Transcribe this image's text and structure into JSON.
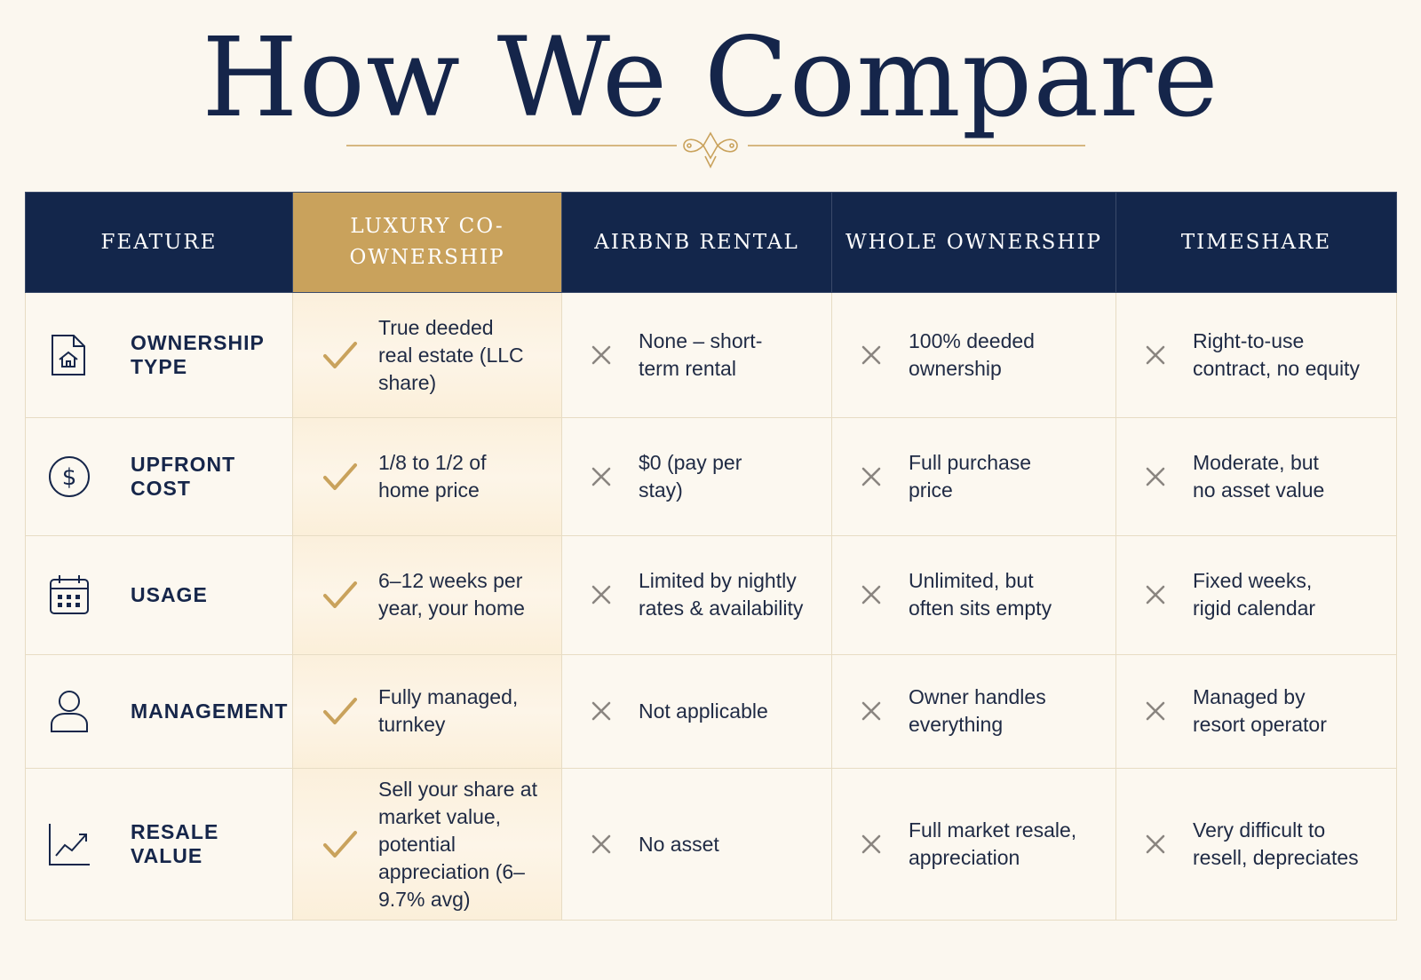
{
  "title": "How We Compare",
  "colors": {
    "navy": "#13264b",
    "gold": "#c9a25c",
    "background": "#fbf7ef",
    "x_mark": "#8a8580"
  },
  "columns": [
    {
      "label": "FEATURE",
      "highlight": false
    },
    {
      "label": "LUXURY CO-OWNERSHIP",
      "highlight": true
    },
    {
      "label": "AIRBNB RENTAL",
      "highlight": false
    },
    {
      "label": "WHOLE OWNERSHIP",
      "highlight": false
    },
    {
      "label": "TIMESHARE",
      "highlight": false
    }
  ],
  "rows": [
    {
      "feature": "OWNERSHIP TYPE",
      "icon": "house-document-icon",
      "luxury": {
        "mark": "check",
        "text": "True deeded real estate (LLC share)"
      },
      "airbnb": {
        "mark": "x",
        "text": "None – short-term rental"
      },
      "whole": {
        "mark": "x",
        "text": "100% deeded ownership"
      },
      "timeshare": {
        "mark": "x",
        "text": "Right-to-use contract, no equity"
      }
    },
    {
      "feature": "UPFRONT COST",
      "icon": "dollar-circle-icon",
      "luxury": {
        "mark": "check",
        "text": "1/8 to 1/2 of home price"
      },
      "airbnb": {
        "mark": "x",
        "text": "$0 (pay per stay)"
      },
      "whole": {
        "mark": "x",
        "text": "Full purchase price"
      },
      "timeshare": {
        "mark": "x",
        "text": "Moderate, but no asset value"
      }
    },
    {
      "feature": "USAGE",
      "icon": "calendar-icon",
      "luxury": {
        "mark": "check",
        "text": "6–12 weeks per year, your home"
      },
      "airbnb": {
        "mark": "x",
        "text": "Limited by nightly rates & availability"
      },
      "whole": {
        "mark": "x",
        "text": "Unlimited, but often sits empty"
      },
      "timeshare": {
        "mark": "x",
        "text": "Fixed weeks, rigid calendar"
      }
    },
    {
      "feature": "MANAGEMENT",
      "icon": "person-icon",
      "luxury": {
        "mark": "check",
        "text": "Fully managed, turnkey"
      },
      "airbnb": {
        "mark": "x",
        "text": "Not applicable"
      },
      "whole": {
        "mark": "x",
        "text": "Owner handles everything"
      },
      "timeshare": {
        "mark": "x",
        "text": "Managed by resort operator"
      }
    },
    {
      "feature": "RESALE VALUE",
      "icon": "trend-up-chart-icon",
      "luxury": {
        "mark": "check",
        "text": "Sell your share at market value, potential appreciation (6–9.7% avg)"
      },
      "airbnb": {
        "mark": "x",
        "text": "No asset"
      },
      "whole": {
        "mark": "x",
        "text": "Full market resale, appreciation"
      },
      "timeshare": {
        "mark": "x",
        "text": "Very difficult to resell, depreciates"
      }
    }
  ]
}
